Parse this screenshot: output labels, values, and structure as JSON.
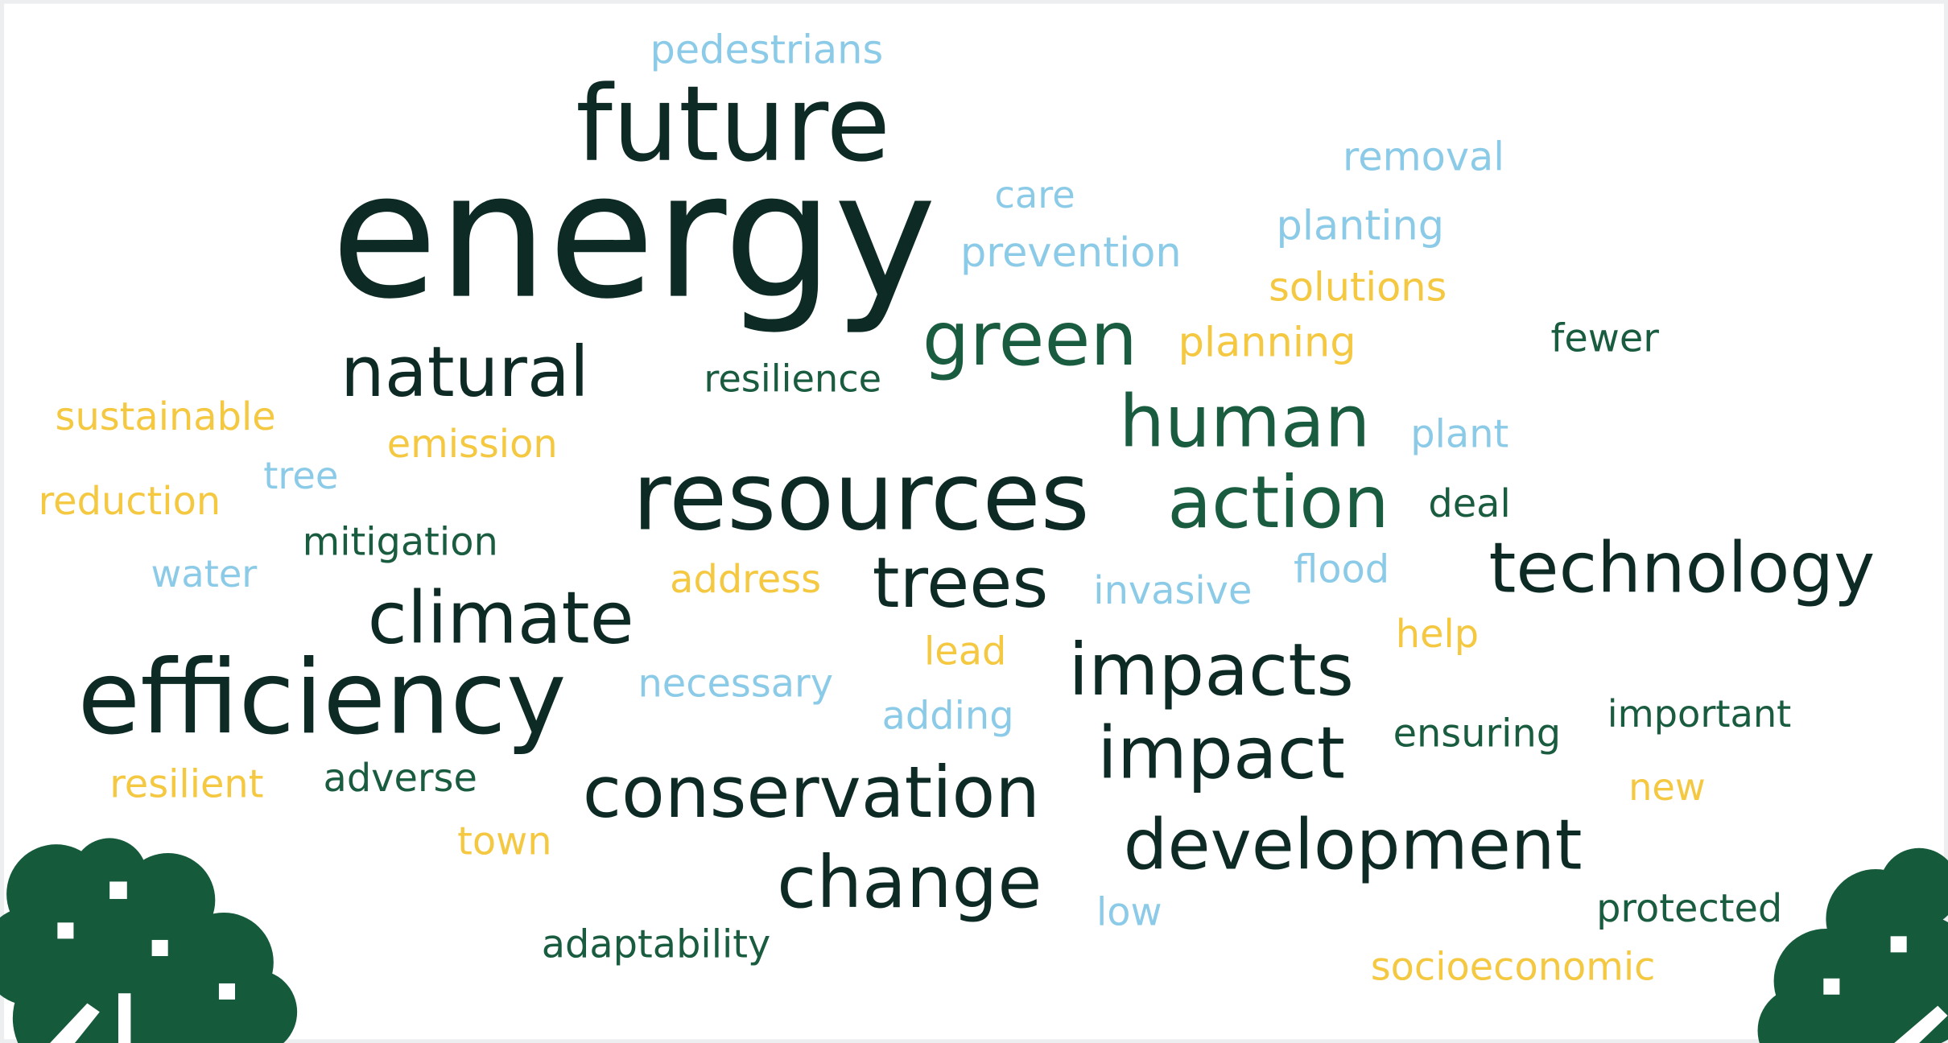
{
  "words": [
    {
      "text": "pedestrians"
    },
    {
      "text": "future"
    },
    {
      "text": "energy"
    },
    {
      "text": "removal"
    },
    {
      "text": "care"
    },
    {
      "text": "planting"
    },
    {
      "text": "prevention"
    },
    {
      "text": "solutions"
    },
    {
      "text": "green"
    },
    {
      "text": "planning"
    },
    {
      "text": "fewer"
    },
    {
      "text": "natural"
    },
    {
      "text": "resilience"
    },
    {
      "text": "sustainable"
    },
    {
      "text": "human"
    },
    {
      "text": "plant"
    },
    {
      "text": "emission"
    },
    {
      "text": "tree"
    },
    {
      "text": "resources"
    },
    {
      "text": "action"
    },
    {
      "text": "reduction"
    },
    {
      "text": "deal"
    },
    {
      "text": "mitigation"
    },
    {
      "text": "water"
    },
    {
      "text": "address"
    },
    {
      "text": "trees"
    },
    {
      "text": "invasive"
    },
    {
      "text": "flood"
    },
    {
      "text": "technology"
    },
    {
      "text": "climate"
    },
    {
      "text": "lead"
    },
    {
      "text": "help"
    },
    {
      "text": "efficiency"
    },
    {
      "text": "necessary"
    },
    {
      "text": "impacts"
    },
    {
      "text": "adding"
    },
    {
      "text": "ensuring"
    },
    {
      "text": "important"
    },
    {
      "text": "impact"
    },
    {
      "text": "resilient"
    },
    {
      "text": "adverse"
    },
    {
      "text": "conservation"
    },
    {
      "text": "new"
    },
    {
      "text": "town"
    },
    {
      "text": "development"
    },
    {
      "text": "change"
    },
    {
      "text": "low"
    },
    {
      "text": "protected"
    },
    {
      "text": "adaptability"
    },
    {
      "text": "socioeconomic"
    }
  ]
}
